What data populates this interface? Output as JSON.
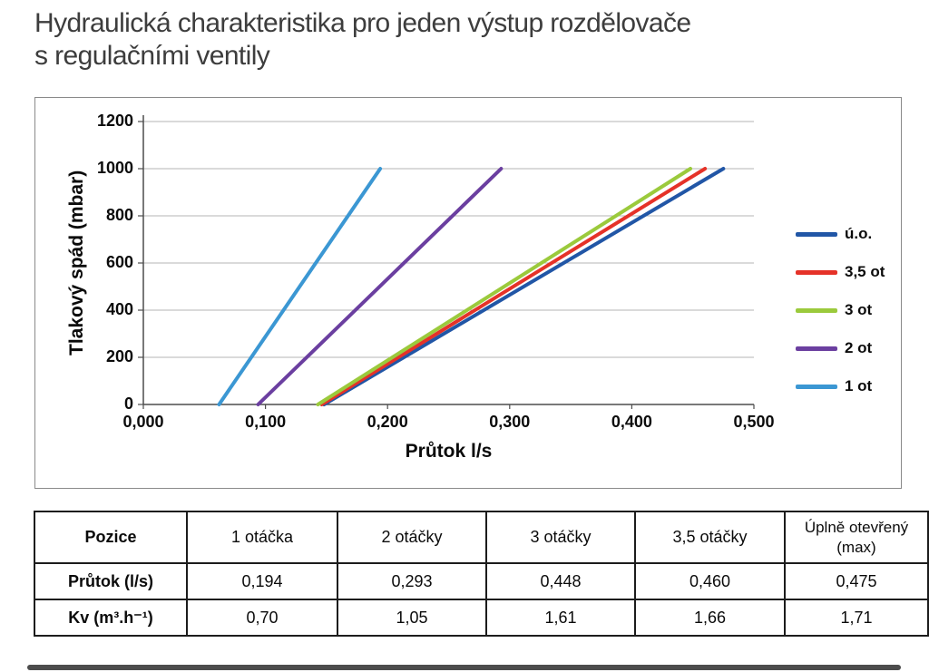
{
  "page": {
    "title_line1": "Hydraulická charakteristika pro jeden výstup rozdělovače",
    "title_line2": "s regulačními ventily"
  },
  "colors": {
    "grid": "#b4b4b4",
    "axis": "#4d4d4d",
    "chart_border": "#8a8a8a",
    "table_border": "#1c1c1c",
    "title_text": "#3d3d3d"
  },
  "chart_data": {
    "type": "line",
    "title": "",
    "xlabel": "Průtok l/s",
    "ylabel": "Tlakový spád (mbar)",
    "xlim": [
      0,
      0.5
    ],
    "ylim": [
      0,
      1200
    ],
    "x_ticks": [
      "0,000",
      "0,100",
      "0,200",
      "0,300",
      "0,400",
      "0,500"
    ],
    "y_ticks": [
      0,
      200,
      400,
      600,
      800,
      1000,
      1200
    ],
    "grid": "horizontal",
    "legend_position": "right",
    "series": [
      {
        "name": "ú.o.",
        "color": "#2156A6",
        "points": [
          [
            0.148,
            0
          ],
          [
            0.475,
            1000
          ]
        ]
      },
      {
        "name": "3,5 ot",
        "color": "#E53228",
        "points": [
          [
            0.146,
            0
          ],
          [
            0.46,
            1000
          ]
        ]
      },
      {
        "name": "3 ot",
        "color": "#9BCA3C",
        "points": [
          [
            0.143,
            0
          ],
          [
            0.448,
            1000
          ]
        ]
      },
      {
        "name": "2 ot",
        "color": "#6B3FA0",
        "points": [
          [
            0.094,
            0
          ],
          [
            0.293,
            1000
          ]
        ]
      },
      {
        "name": "1 ot",
        "color": "#3B97D3",
        "points": [
          [
            0.062,
            0
          ],
          [
            0.194,
            1000
          ]
        ]
      }
    ]
  },
  "table": {
    "header": [
      "Pozice",
      "1 otáčka",
      "2 otáčky",
      "3 otáčky",
      "3,5 otáčky",
      "Úplně otevřený (max)"
    ],
    "rows": [
      {
        "label": "Průtok (l/s)",
        "values": [
          "0,194",
          "0,293",
          "0,448",
          "0,460",
          "0,475"
        ]
      },
      {
        "label": "Kv (m³.h⁻¹)",
        "values": [
          "0,70",
          "1,05",
          "1,61",
          "1,66",
          "1,71"
        ]
      }
    ]
  }
}
